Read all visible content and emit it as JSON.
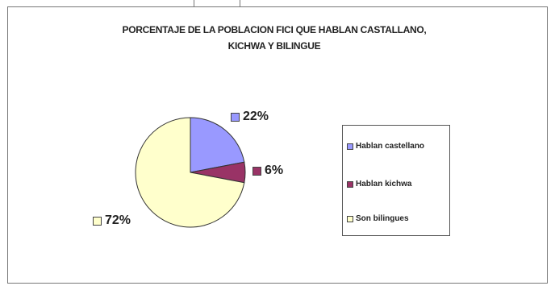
{
  "chart_data": {
    "type": "pie",
    "title_line1": "PORCENTAJE DE LA POBLACION FICI QUE HABLAN CASTALLANO,",
    "title_line2": "KICHWA Y BILINGUE",
    "slices": [
      {
        "name": "Hablan castellano",
        "value": 22,
        "label": "22%",
        "color": "#9999ff"
      },
      {
        "name": "Hablan kichwa",
        "value": 6,
        "label": "6%",
        "color": "#993366"
      },
      {
        "name": "Son bilingues",
        "value": 72,
        "label": "72%",
        "color": "#ffffcc"
      }
    ],
    "legend_position": "right"
  }
}
